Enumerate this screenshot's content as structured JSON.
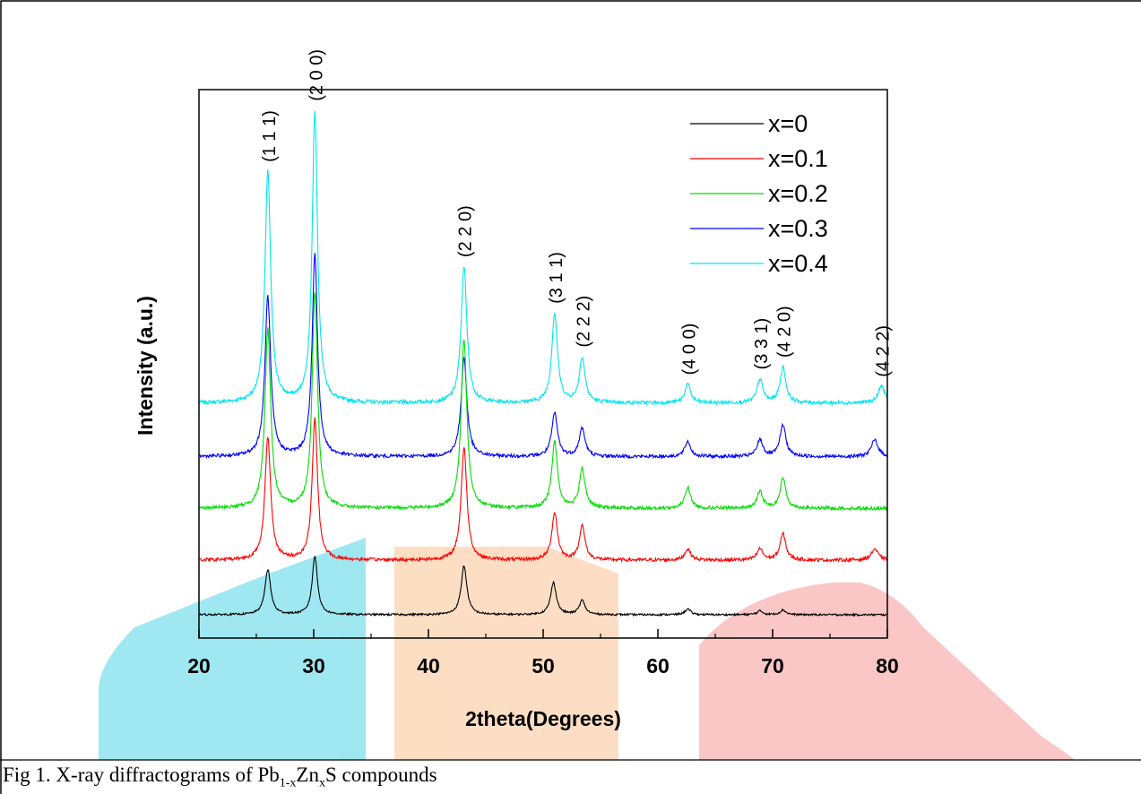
{
  "caption": {
    "prefix": "Fig 1. X-ray diffractograms of  ",
    "formula_pb": "Pb",
    "formula_pb_sub": "1-x",
    "formula_zn": "Zn",
    "formula_zn_sub": "x",
    "formula_s": "S",
    "suffix": " compounds"
  },
  "watermark_colors": [
    "#7fe0ec",
    "#fcd3b0",
    "#f9b3b3"
  ],
  "chart_data": {
    "type": "line",
    "title": "",
    "xlabel": "2theta(Degrees)",
    "ylabel": "Intensity (a.u.)",
    "xlim": [
      20,
      80
    ],
    "x_ticks": [
      20,
      30,
      40,
      50,
      60,
      70,
      80
    ],
    "y_ticks_shown": false,
    "grid": false,
    "legend_position": "top-right",
    "series": [
      {
        "name": "x=0",
        "color": "#000000",
        "baseline": 0.0,
        "noise": 1.0,
        "peaks": [
          [
            26.0,
            48,
            0.3
          ],
          [
            30.1,
            62,
            0.28
          ],
          [
            43.1,
            52,
            0.3
          ],
          [
            50.9,
            34,
            0.3
          ],
          [
            53.4,
            15,
            0.3
          ],
          [
            62.6,
            6,
            0.3
          ],
          [
            68.9,
            4,
            0.3
          ],
          [
            70.9,
            5,
            0.3
          ]
        ]
      },
      {
        "name": "x=0.1",
        "color": "#ff0000",
        "baseline": 58.0,
        "noise": 1.8,
        "peaks": [
          [
            26.0,
            130,
            0.3
          ],
          [
            30.1,
            150,
            0.28
          ],
          [
            43.1,
            120,
            0.3
          ],
          [
            51.0,
            50,
            0.3
          ],
          [
            53.4,
            36,
            0.3
          ],
          [
            62.6,
            12,
            0.3
          ],
          [
            68.9,
            12,
            0.3
          ],
          [
            70.9,
            28,
            0.3
          ],
          [
            78.9,
            12,
            0.35
          ]
        ]
      },
      {
        "name": "x=0.2",
        "color": "#00dd00",
        "baseline": 113.0,
        "noise": 1.8,
        "peaks": [
          [
            26.0,
            190,
            0.3
          ],
          [
            30.1,
            230,
            0.28
          ],
          [
            43.1,
            180,
            0.3
          ],
          [
            51.0,
            70,
            0.3
          ],
          [
            53.4,
            42,
            0.3
          ],
          [
            62.6,
            22,
            0.3
          ],
          [
            68.9,
            18,
            0.3
          ],
          [
            70.9,
            32,
            0.3
          ]
        ]
      },
      {
        "name": "x=0.3",
        "color": "#0000ff",
        "baseline": 168.0,
        "noise": 1.8,
        "peaks": [
          [
            26.0,
            170,
            0.3
          ],
          [
            30.1,
            215,
            0.28
          ],
          [
            43.1,
            105,
            0.3
          ],
          [
            51.0,
            46,
            0.3
          ],
          [
            53.4,
            30,
            0.3
          ],
          [
            62.6,
            16,
            0.3
          ],
          [
            68.9,
            18,
            0.3
          ],
          [
            70.9,
            34,
            0.3
          ],
          [
            78.9,
            18,
            0.35
          ]
        ]
      },
      {
        "name": "x=0.4",
        "color": "#00e5ee",
        "baseline": 225.0,
        "noise": 2.0,
        "peaks": [
          [
            26.0,
            245,
            0.3
          ],
          [
            30.1,
            310,
            0.28
          ],
          [
            43.1,
            145,
            0.3
          ],
          [
            51.0,
            95,
            0.3
          ],
          [
            53.4,
            48,
            0.3
          ],
          [
            62.6,
            20,
            0.3
          ],
          [
            68.9,
            25,
            0.3
          ],
          [
            70.9,
            38,
            0.3
          ],
          [
            79.5,
            18,
            0.35
          ]
        ]
      }
    ],
    "annotations": [
      {
        "text": "(1 1 1)",
        "x": 26.0
      },
      {
        "text": "(2 0 0)",
        "x": 30.1
      },
      {
        "text": "(2 2 0)",
        "x": 43.1
      },
      {
        "text": "(3 1 1)",
        "x": 51.0
      },
      {
        "text": "(2 2 2)",
        "x": 53.4
      },
      {
        "text": "(4 0 0)",
        "x": 62.6
      },
      {
        "text": "(3 3 1)",
        "x": 68.9
      },
      {
        "text": "(4 2 0)",
        "x": 70.9
      },
      {
        "text": "(4 2 2)",
        "x": 79.5
      }
    ]
  }
}
